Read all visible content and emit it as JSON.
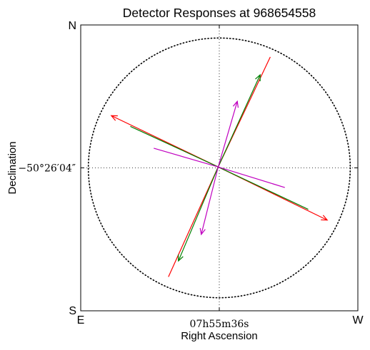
{
  "chart_data": {
    "type": "vector",
    "title": "Detector Responses at 968654558",
    "xlabel": "Right Ascension",
    "ylabel": "Declination",
    "xlim": [
      -1.0,
      1.0
    ],
    "ylim": [
      -1.04,
      1.04
    ],
    "grid": true,
    "circle": {
      "radius": 0.945,
      "style": "dotted"
    },
    "x_tick": {
      "value": 0,
      "label": "07h55m36s"
    },
    "y_tick": {
      "value": 0,
      "label": "−50°26′04″"
    },
    "corner_labels": {
      "top_left": "N",
      "bottom_left": "S",
      "bottom_left_x": "E",
      "bottom_right": "W"
    },
    "series": [
      {
        "color": "#ff0000",
        "vectors": [
          {
            "x": [
              -0.008,
              0.368
            ],
            "y": [
              0.007,
              0.807
            ],
            "head": false
          },
          {
            "x": [
              -0.008,
              -0.367
            ],
            "y": [
              0.007,
              -0.793
            ],
            "head": false
          },
          {
            "x": [
              -0.008,
              -0.779
            ],
            "y": [
              0.007,
              0.38
            ],
            "head": true
          },
          {
            "x": [
              -0.008,
              0.779
            ],
            "y": [
              0.007,
              -0.38
            ],
            "head": true
          }
        ]
      },
      {
        "color": "#007f00",
        "vectors": [
          {
            "x": [
              -0.008,
              0.295
            ],
            "y": [
              0.007,
              0.677
            ],
            "head": true
          },
          {
            "x": [
              -0.008,
              -0.295
            ],
            "y": [
              0.007,
              -0.677
            ],
            "head": true
          },
          {
            "x": [
              -0.008,
              -0.642
            ],
            "y": [
              0.007,
              0.302
            ],
            "head": false
          },
          {
            "x": [
              -0.008,
              0.642
            ],
            "y": [
              0.007,
              -0.302
            ],
            "head": false
          }
        ]
      },
      {
        "color": "#c000c0",
        "vectors": [
          {
            "x": [
              -0.008,
              0.13
            ],
            "y": [
              0.007,
              0.484
            ],
            "head": true
          },
          {
            "x": [
              -0.008,
              -0.13
            ],
            "y": [
              0.007,
              -0.484
            ],
            "head": true
          },
          {
            "x": [
              -0.008,
              -0.473
            ],
            "y": [
              0.007,
              0.143
            ],
            "head": false
          },
          {
            "x": [
              -0.008,
              0.473
            ],
            "y": [
              0.007,
              -0.143
            ],
            "head": false
          }
        ]
      }
    ]
  }
}
